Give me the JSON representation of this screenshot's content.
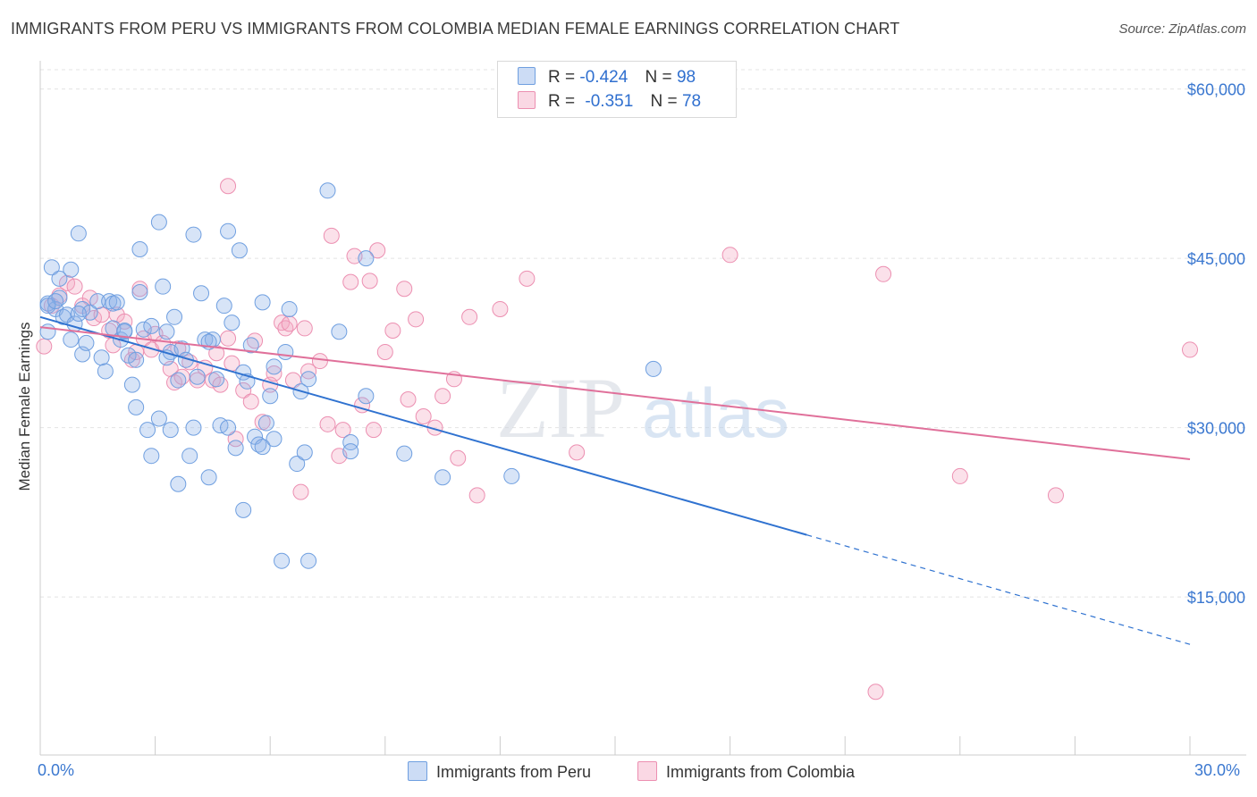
{
  "header": {
    "title": "IMMIGRANTS FROM PERU VS IMMIGRANTS FROM COLOMBIA MEDIAN FEMALE EARNINGS CORRELATION CHART",
    "source": "Source: ZipAtlas.com"
  },
  "watermark": {
    "zip": "ZIP",
    "atlas": "atlas"
  },
  "legend": {
    "r_label": "R =",
    "n_label": "N =",
    "peru": {
      "r": "-0.424",
      "n": "98"
    },
    "colombia": {
      "r": "-0.351",
      "n": "78"
    }
  },
  "colors": {
    "peru_fill": "rgba(141,178,232,0.35)",
    "peru_stroke": "#6f9fe0",
    "peru_line": "#2f72d0",
    "colombia_fill": "rgba(244,168,195,0.35)",
    "colombia_stroke": "#ec8fb1",
    "colombia_line": "#e0709a",
    "axis_text": "#3b78d0"
  },
  "chart_data": {
    "type": "scatter",
    "title": "IMMIGRANTS FROM PERU VS IMMIGRANTS FROM COLOMBIA MEDIAN FEMALE EARNINGS CORRELATION CHART",
    "xlabel": "",
    "ylabel": "Median Female Earnings",
    "xlim": [
      0,
      30
    ],
    "ylim": [
      1000,
      62500
    ],
    "x_tick_labels": [
      "0.0%",
      "30.0%"
    ],
    "y_ticks": [
      15000,
      30000,
      45000,
      60000
    ],
    "y_tick_labels": [
      "$15,000",
      "$30,000",
      "$45,000",
      "$60,000"
    ],
    "grid": true,
    "series": [
      {
        "name": "Immigrants from Peru",
        "r": -0.424,
        "n": 98,
        "trend": {
          "x0": 0.0,
          "y0": 39800,
          "x1": 20.0,
          "y1": 20500,
          "dash_to_x": 30.0,
          "dash_to_y": 10800
        },
        "points": [
          [
            0.2,
            38500
          ],
          [
            0.2,
            41000
          ],
          [
            0.3,
            44200
          ],
          [
            0.4,
            40500
          ],
          [
            0.5,
            43200
          ],
          [
            0.5,
            41500
          ],
          [
            0.6,
            39800
          ],
          [
            0.7,
            40000
          ],
          [
            0.8,
            44000
          ],
          [
            0.8,
            37800
          ],
          [
            0.9,
            39200
          ],
          [
            1.0,
            47200
          ],
          [
            1.1,
            40500
          ],
          [
            1.1,
            36500
          ],
          [
            1.2,
            37500
          ],
          [
            1.3,
            40200
          ],
          [
            1.5,
            41200
          ],
          [
            1.6,
            36200
          ],
          [
            1.7,
            35000
          ],
          [
            1.8,
            41200
          ],
          [
            1.9,
            41000
          ],
          [
            1.9,
            38800
          ],
          [
            2.1,
            37800
          ],
          [
            2.2,
            38500
          ],
          [
            2.3,
            36400
          ],
          [
            2.4,
            33800
          ],
          [
            2.5,
            31800
          ],
          [
            2.5,
            36000
          ],
          [
            2.6,
            45800
          ],
          [
            2.6,
            42000
          ],
          [
            2.7,
            38700
          ],
          [
            2.8,
            29800
          ],
          [
            2.9,
            39000
          ],
          [
            2.9,
            27500
          ],
          [
            3.1,
            48200
          ],
          [
            3.1,
            30800
          ],
          [
            3.2,
            42500
          ],
          [
            3.3,
            38500
          ],
          [
            3.4,
            29800
          ],
          [
            3.4,
            36700
          ],
          [
            3.5,
            39800
          ],
          [
            3.6,
            25000
          ],
          [
            3.6,
            34200
          ],
          [
            3.7,
            37000
          ],
          [
            3.8,
            36000
          ],
          [
            3.9,
            27500
          ],
          [
            4.0,
            47100
          ],
          [
            4.0,
            30000
          ],
          [
            4.1,
            34500
          ],
          [
            4.2,
            41900
          ],
          [
            4.3,
            37800
          ],
          [
            4.4,
            25600
          ],
          [
            4.5,
            37800
          ],
          [
            4.6,
            34300
          ],
          [
            4.7,
            30200
          ],
          [
            4.8,
            40800
          ],
          [
            4.9,
            47400
          ],
          [
            4.9,
            30000
          ],
          [
            5.0,
            39300
          ],
          [
            5.1,
            28200
          ],
          [
            5.2,
            45700
          ],
          [
            5.3,
            34900
          ],
          [
            5.3,
            22700
          ],
          [
            5.4,
            34100
          ],
          [
            5.5,
            37300
          ],
          [
            5.6,
            29200
          ],
          [
            5.7,
            28500
          ],
          [
            5.8,
            41100
          ],
          [
            5.8,
            28300
          ],
          [
            5.9,
            30400
          ],
          [
            6.0,
            32800
          ],
          [
            6.1,
            35400
          ],
          [
            6.1,
            29000
          ],
          [
            6.3,
            18200
          ],
          [
            6.4,
            36700
          ],
          [
            6.5,
            40500
          ],
          [
            6.7,
            26800
          ],
          [
            6.8,
            33200
          ],
          [
            6.9,
            27800
          ],
          [
            7.0,
            34300
          ],
          [
            7.0,
            18200
          ],
          [
            7.5,
            51000
          ],
          [
            7.8,
            38500
          ],
          [
            8.1,
            28700
          ],
          [
            8.1,
            27900
          ],
          [
            8.5,
            32800
          ],
          [
            8.5,
            45000
          ],
          [
            9.5,
            27700
          ],
          [
            10.5,
            25600
          ],
          [
            12.3,
            25700
          ],
          [
            16.0,
            35200
          ],
          [
            0.2,
            40800
          ],
          [
            0.4,
            41200
          ],
          [
            1.0,
            40100
          ],
          [
            2.0,
            41100
          ],
          [
            2.2,
            38600
          ],
          [
            3.3,
            36200
          ],
          [
            4.4,
            37600
          ]
        ]
      },
      {
        "name": "Immigrants from Colombia",
        "r": -0.351,
        "n": 78,
        "trend": {
          "x0": 0.0,
          "y0": 38900,
          "x1": 30.0,
          "y1": 27200
        },
        "points": [
          [
            0.1,
            37200
          ],
          [
            0.3,
            40800
          ],
          [
            0.5,
            41700
          ],
          [
            0.7,
            42800
          ],
          [
            0.9,
            42500
          ],
          [
            1.1,
            40800
          ],
          [
            1.3,
            41500
          ],
          [
            1.4,
            39700
          ],
          [
            1.6,
            40000
          ],
          [
            1.8,
            38600
          ],
          [
            1.9,
            37300
          ],
          [
            2.0,
            40000
          ],
          [
            2.2,
            39400
          ],
          [
            2.4,
            36000
          ],
          [
            2.5,
            36700
          ],
          [
            2.6,
            42300
          ],
          [
            2.7,
            37900
          ],
          [
            2.9,
            36900
          ],
          [
            3.0,
            38300
          ],
          [
            3.2,
            37500
          ],
          [
            3.4,
            35200
          ],
          [
            3.5,
            34000
          ],
          [
            3.6,
            37000
          ],
          [
            3.7,
            34500
          ],
          [
            3.9,
            35800
          ],
          [
            4.1,
            34200
          ],
          [
            4.3,
            35300
          ],
          [
            4.5,
            34200
          ],
          [
            4.6,
            36600
          ],
          [
            4.7,
            33800
          ],
          [
            4.9,
            37900
          ],
          [
            4.9,
            51400
          ],
          [
            5.0,
            35700
          ],
          [
            5.1,
            29000
          ],
          [
            5.3,
            33300
          ],
          [
            5.5,
            32300
          ],
          [
            5.6,
            37700
          ],
          [
            5.8,
            30500
          ],
          [
            6.0,
            33800
          ],
          [
            6.1,
            34800
          ],
          [
            6.3,
            39300
          ],
          [
            6.4,
            38800
          ],
          [
            6.5,
            39200
          ],
          [
            6.6,
            34200
          ],
          [
            6.8,
            24300
          ],
          [
            6.9,
            38800
          ],
          [
            7.0,
            35000
          ],
          [
            7.3,
            35900
          ],
          [
            7.5,
            30300
          ],
          [
            7.6,
            47000
          ],
          [
            7.8,
            27500
          ],
          [
            7.9,
            29800
          ],
          [
            8.1,
            42900
          ],
          [
            8.2,
            45200
          ],
          [
            8.4,
            32000
          ],
          [
            8.6,
            43000
          ],
          [
            8.7,
            29800
          ],
          [
            8.8,
            45700
          ],
          [
            9.0,
            36700
          ],
          [
            9.2,
            38600
          ],
          [
            9.5,
            42300
          ],
          [
            9.6,
            32500
          ],
          [
            9.8,
            39600
          ],
          [
            10.0,
            31000
          ],
          [
            10.3,
            30000
          ],
          [
            10.5,
            32800
          ],
          [
            10.8,
            34300
          ],
          [
            10.9,
            27300
          ],
          [
            11.2,
            39800
          ],
          [
            11.4,
            24000
          ],
          [
            12.0,
            40500
          ],
          [
            12.7,
            43200
          ],
          [
            14.0,
            27800
          ],
          [
            18.0,
            45300
          ],
          [
            21.8,
            6600
          ],
          [
            22.0,
            43600
          ],
          [
            24.0,
            25700
          ],
          [
            26.5,
            24000
          ],
          [
            30.0,
            36900
          ]
        ]
      }
    ]
  },
  "bottom_legend": {
    "peru": "Immigrants from Peru",
    "colombia": "Immigrants from Colombia"
  }
}
